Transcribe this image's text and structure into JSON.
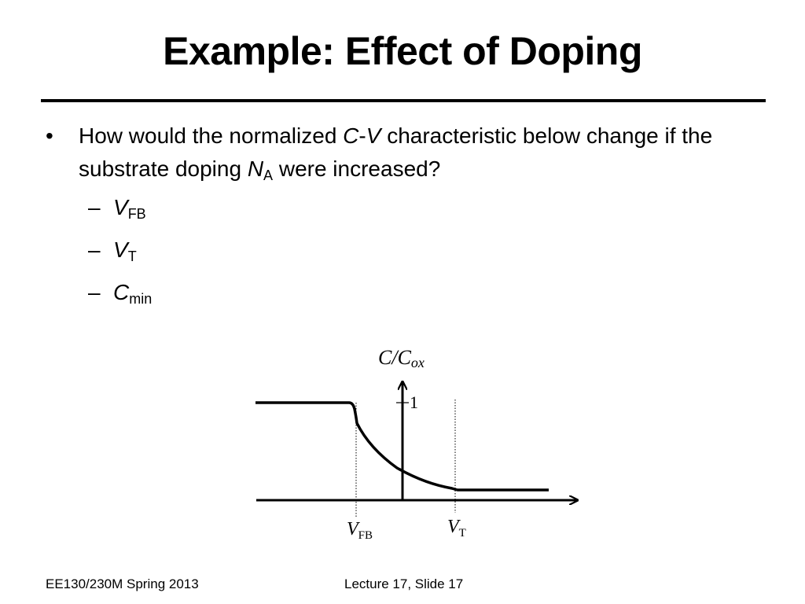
{
  "slide": {
    "title": "Example: Effect of Doping",
    "bullet": {
      "text_before": "How would the normalized ",
      "cv_c": "C",
      "cv_dash": "-",
      "cv_v": "V",
      "text_middle": " characteristic below change if the substrate doping ",
      "na_main": "N",
      "na_sub": "A",
      "text_after": " were increased?"
    },
    "sub_items": [
      {
        "main": "V",
        "sub": "FB"
      },
      {
        "main": "V",
        "sub": "T"
      },
      {
        "main": "C",
        "sub": "min"
      }
    ]
  },
  "diagram": {
    "y_axis_label_main": "C/C",
    "y_axis_label_sub": "ox",
    "one_tick_label": "1",
    "vfb_label_main": "V",
    "vfb_label_sub": "FB",
    "vt_label_main": "V",
    "vt_label_sub": "T"
  },
  "footer": {
    "left": "EE130/230M Spring 2013",
    "center": "Lecture 17, Slide 17"
  }
}
